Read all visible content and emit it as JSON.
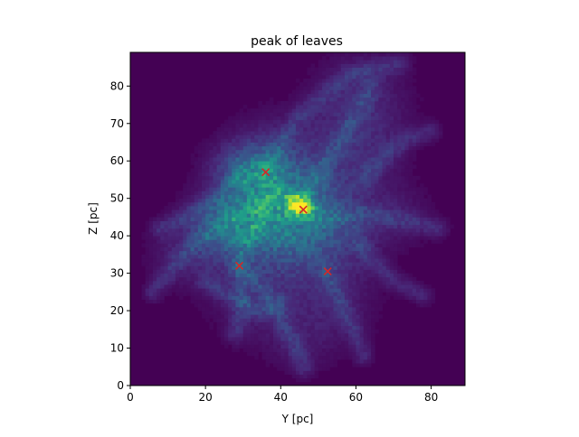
{
  "chart_data": {
    "type": "heatmap",
    "title": "peak of leaves",
    "xlabel": "Y [pc]",
    "ylabel": "Z [pc]",
    "xlim": [
      0,
      89
    ],
    "ylim": [
      0,
      89
    ],
    "xticks": [
      0,
      20,
      40,
      60,
      80
    ],
    "yticks": [
      0,
      10,
      20,
      30,
      40,
      50,
      60,
      70,
      80
    ],
    "colormap": "viridis",
    "marker_color": "#d62728",
    "grid": false,
    "blobs": [
      {
        "x": 45,
        "y": 48,
        "sx": 2.2,
        "sy": 1.6,
        "a": 0.62
      },
      {
        "x": 38,
        "y": 52,
        "sx": 9.0,
        "sy": 10.0,
        "a": 0.28
      },
      {
        "x": 26,
        "y": 42,
        "sx": 6.5,
        "sy": 5.5,
        "a": 0.26
      },
      {
        "x": 40,
        "y": 44,
        "sx": 10.0,
        "sy": 9.0,
        "a": 0.18
      },
      {
        "x": 32,
        "y": 58,
        "sx": 6.0,
        "sy": 4.5,
        "a": 0.2
      },
      {
        "x": 50,
        "y": 42,
        "sx": 8.0,
        "sy": 8.0,
        "a": 0.14
      },
      {
        "x": 58,
        "y": 62,
        "sx": 9.0,
        "sy": 12.0,
        "a": 0.09
      },
      {
        "x": 62,
        "y": 75,
        "sx": 8.0,
        "sy": 10.0,
        "a": 0.08
      },
      {
        "x": 35,
        "y": 25,
        "sx": 9.0,
        "sy": 9.0,
        "a": 0.09
      },
      {
        "x": 55,
        "y": 25,
        "sx": 7.0,
        "sy": 10.0,
        "a": 0.08
      },
      {
        "x": 15,
        "y": 35,
        "sx": 7.0,
        "sy": 6.0,
        "a": 0.08
      },
      {
        "x": 70,
        "y": 45,
        "sx": 7.0,
        "sy": 6.0,
        "a": 0.06
      },
      {
        "x": 45,
        "y": 12,
        "sx": 6.0,
        "sy": 6.0,
        "a": 0.05
      }
    ],
    "filaments": [
      [
        [
          6,
          25
        ],
        [
          14,
          35
        ],
        [
          22,
          42
        ],
        [
          30,
          47
        ],
        [
          38,
          52
        ],
        [
          45,
          48
        ],
        [
          52,
          44
        ],
        [
          62,
          46
        ],
        [
          74,
          44
        ],
        [
          82,
          42
        ]
      ],
      [
        [
          36,
          57
        ],
        [
          40,
          65
        ],
        [
          45,
          72
        ],
        [
          52,
          78
        ],
        [
          58,
          83
        ],
        [
          66,
          85
        ],
        [
          72,
          86
        ]
      ],
      [
        [
          29,
          32
        ],
        [
          35,
          26
        ],
        [
          40,
          18
        ],
        [
          44,
          10
        ],
        [
          46,
          5
        ]
      ],
      [
        [
          52,
          30
        ],
        [
          56,
          22
        ],
        [
          60,
          14
        ],
        [
          62,
          8
        ]
      ],
      [
        [
          45,
          48
        ],
        [
          50,
          56
        ],
        [
          55,
          64
        ],
        [
          60,
          72
        ],
        [
          64,
          80
        ]
      ],
      [
        [
          28,
          14
        ],
        [
          30,
          22
        ],
        [
          29,
          32
        ],
        [
          32,
          40
        ],
        [
          36,
          48
        ]
      ],
      [
        [
          60,
          40
        ],
        [
          64,
          34
        ],
        [
          70,
          28
        ],
        [
          78,
          24
        ]
      ],
      [
        [
          8,
          42
        ],
        [
          16,
          46
        ],
        [
          24,
          50
        ],
        [
          30,
          56
        ]
      ],
      [
        [
          62,
          55
        ],
        [
          68,
          62
        ],
        [
          74,
          66
        ],
        [
          80,
          68
        ]
      ],
      [
        [
          20,
          28
        ],
        [
          26,
          24
        ],
        [
          34,
          20
        ],
        [
          40,
          22
        ]
      ]
    ],
    "noise_seed": 7,
    "peaks": [
      {
        "x": 36,
        "y": 57
      },
      {
        "x": 46,
        "y": 47
      },
      {
        "x": 29,
        "y": 32
      },
      {
        "x": 52.5,
        "y": 30.5
      }
    ]
  }
}
